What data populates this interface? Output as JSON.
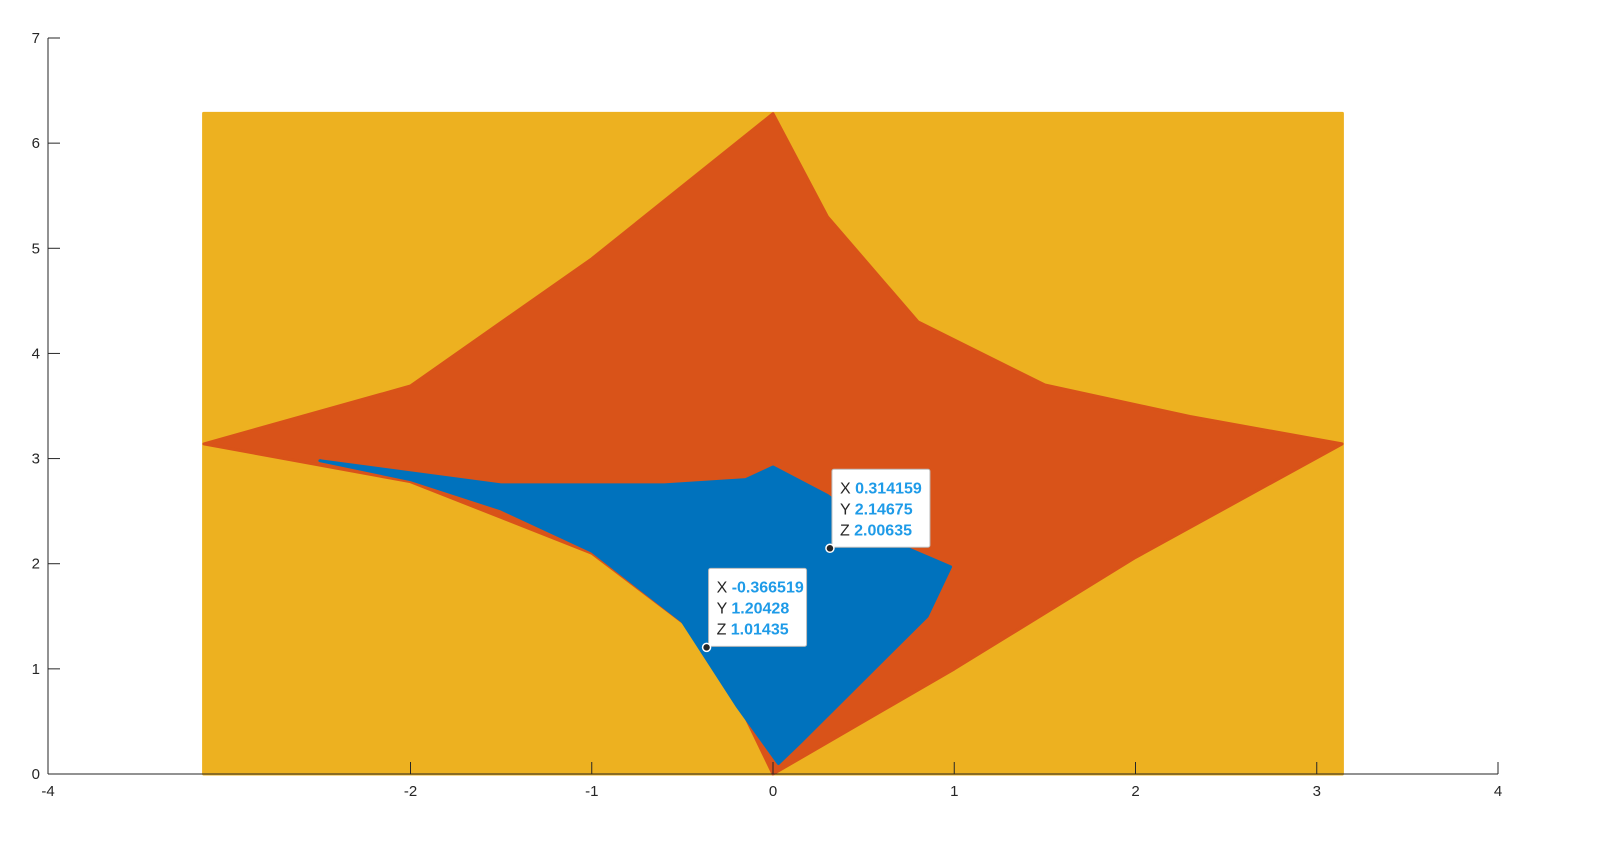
{
  "chart_data": {
    "type": "scatter",
    "title": "",
    "xlabel": "",
    "ylabel": "",
    "xlim": [
      -4,
      4
    ],
    "ylim": [
      0,
      7
    ],
    "x_ticks": [
      "-4",
      "-2",
      "-1",
      "0",
      "1",
      "2",
      "3",
      "4"
    ],
    "y_ticks": [
      "0",
      "1",
      "2",
      "3",
      "4",
      "5",
      "6",
      "7"
    ],
    "grid": false,
    "colors": {
      "yellow": "#EDB120",
      "orange": "#D95319",
      "blue": "#0072BD"
    },
    "regions": [
      {
        "color": "yellow",
        "polygon": [
          [
            -3.14159,
            0
          ],
          [
            3.14159,
            0
          ],
          [
            3.14159,
            6.28318
          ],
          [
            -3.14159,
            6.28318
          ]
        ]
      },
      {
        "color": "orange",
        "polygon": [
          [
            -3.14,
            3.14
          ],
          [
            -2.0,
            3.69
          ],
          [
            -1.0,
            4.9
          ],
          [
            0,
            6.28
          ],
          [
            0.3,
            5.3
          ],
          [
            0.8,
            4.3
          ],
          [
            1.5,
            3.7
          ],
          [
            2.3,
            3.4
          ],
          [
            3.14,
            3.14
          ],
          [
            2.0,
            2.06
          ],
          [
            1.0,
            1.0
          ],
          [
            0,
            0
          ],
          [
            -0.35,
            1.25
          ],
          [
            -1.0,
            2.1
          ],
          [
            -2.0,
            2.78
          ],
          [
            -3.14,
            3.14
          ]
        ]
      },
      {
        "color": "blue",
        "polygon": [
          [
            -2.5,
            2.98
          ],
          [
            -1.5,
            2.75
          ],
          [
            -0.6,
            2.75
          ],
          [
            -0.15,
            2.8
          ],
          [
            0,
            2.92
          ],
          [
            0.3,
            2.65
          ],
          [
            0.6,
            2.25
          ],
          [
            0.98,
            1.97
          ],
          [
            0.85,
            1.5
          ],
          [
            0.5,
            0.9
          ],
          [
            0.15,
            0.3
          ],
          [
            0.03,
            0.1
          ],
          [
            -0.2,
            0.65
          ],
          [
            -0.5,
            1.45
          ],
          [
            -1.0,
            2.12
          ],
          [
            -1.5,
            2.52
          ],
          [
            -2.0,
            2.8
          ]
        ]
      }
    ],
    "datatips": [
      {
        "x": "0.314159",
        "y": "2.14675",
        "z": "2.00635"
      },
      {
        "x": "-0.366519",
        "y": "1.20428",
        "z": "1.01435"
      }
    ]
  }
}
